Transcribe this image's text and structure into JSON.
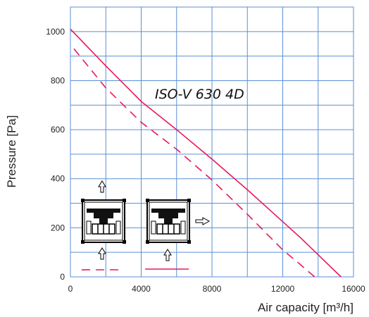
{
  "chart_data": {
    "type": "line",
    "title": "",
    "xlabel": "Air capacity [m³/h]",
    "ylabel": "Pressure [Pa]",
    "xlim": [
      0,
      16000
    ],
    "ylim": [
      0,
      1100
    ],
    "xticks": [
      0,
      4000,
      8000,
      12000,
      16000
    ],
    "yticks": [
      0,
      200,
      400,
      600,
      800,
      1000
    ],
    "grid": true,
    "annotation": "ISO-V 630 4D",
    "colors": {
      "series": "#e8195a",
      "grid": "#5b8fd6",
      "frame": "#5b8fd6"
    },
    "series": [
      {
        "style": "solid",
        "x": [
          0,
          2000,
          4000,
          6000,
          8000,
          10000,
          12000,
          13000,
          14000,
          15000,
          15300
        ],
        "y": [
          1010,
          860,
          715,
          600,
          480,
          355,
          225,
          160,
          90,
          20,
          0
        ]
      },
      {
        "style": "dashed",
        "x": [
          200,
          2000,
          4000,
          6000,
          8000,
          10000,
          12000,
          13000,
          13800
        ],
        "y": [
          930,
          770,
          630,
          520,
          395,
          255,
          110,
          50,
          0
        ]
      }
    ],
    "legend_icons": [
      "fan-unit-vertical-icon",
      "fan-unit-horizontal-icon"
    ]
  }
}
